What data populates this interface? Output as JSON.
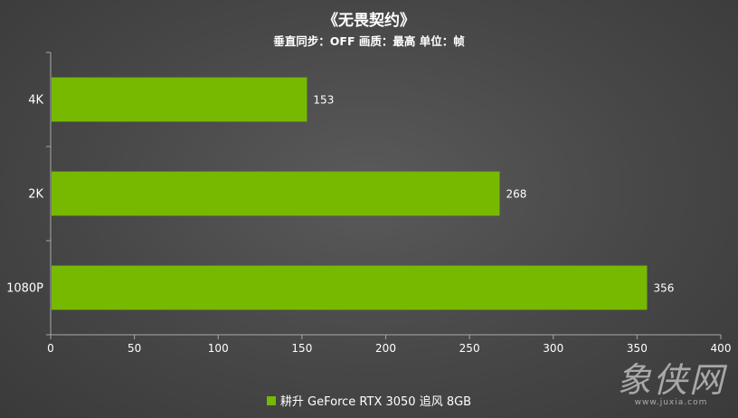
{
  "chart_data": {
    "type": "bar",
    "orientation": "horizontal",
    "title": "《无畏契约》",
    "subtitle": "垂直同步：OFF 画质：最高  单位：帧",
    "categories": [
      "4K",
      "2K",
      "1080P"
    ],
    "series": [
      {
        "name": "耕升 GeForce RTX 3050 追风 8GB",
        "values": [
          153,
          268,
          356
        ],
        "color": "#76b900"
      }
    ],
    "xlim": [
      0,
      400
    ],
    "xticks": [
      "0",
      "50",
      "100",
      "150",
      "200",
      "250",
      "300",
      "350",
      "400"
    ],
    "data_labels": [
      "153",
      "268",
      "356"
    ],
    "grid": false,
    "legend_position": "bottom"
  },
  "watermark": {
    "logo": "象侠网",
    "url": "www.juxia.com"
  }
}
